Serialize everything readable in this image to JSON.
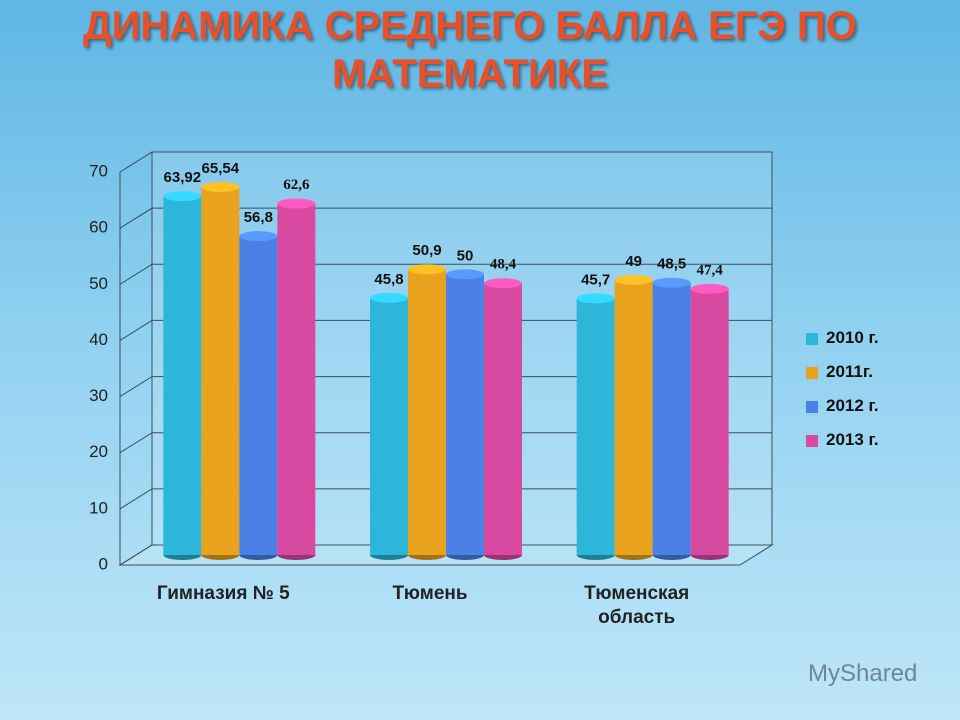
{
  "chart_data": {
    "type": "bar3d",
    "title": "ДИНАМИКА СРЕДНЕГО БАЛЛА ЕГЭ ПО МАТЕМАТИКЕ",
    "categories": [
      "Гимназия № 5",
      "Тюмень",
      "Тюменская область"
    ],
    "series": [
      {
        "name": "2010 г.",
        "color": "#2bb6da",
        "values": [
          63.92,
          45.8,
          45.7
        ],
        "value_labels": [
          "63,92",
          "45,8",
          "45,7"
        ]
      },
      {
        "name": "2011г.",
        "color": "#e9a21e",
        "values": [
          65.54,
          50.9,
          49
        ],
        "value_labels": [
          "65,54",
          "50,9",
          "49"
        ]
      },
      {
        "name": "2012 г.",
        "color": "#4b80e6",
        "values": [
          56.8,
          50,
          48.5
        ],
        "value_labels": [
          "56,8",
          "50",
          "48,5"
        ]
      },
      {
        "name": "2013 г.",
        "color": "#d84aa2",
        "values": [
          62.6,
          48.4,
          47.4
        ],
        "value_labels": [
          "62,6",
          "48,4",
          "47,4"
        ]
      }
    ],
    "ylim": [
      0,
      70
    ],
    "yticks": [
      0,
      10,
      20,
      30,
      40,
      50,
      60,
      70
    ],
    "grid": true,
    "legend": "right",
    "watermark": "MyShared"
  }
}
